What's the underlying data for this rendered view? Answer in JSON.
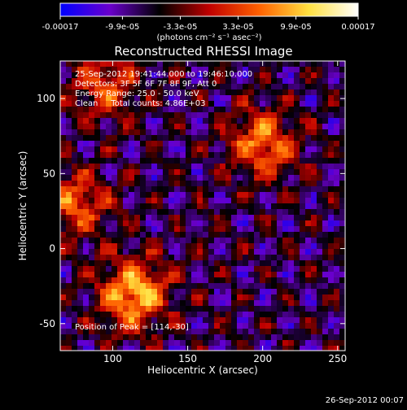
{
  "chart_data": {
    "type": "heatmap",
    "title": "Reconstructed RHESSI Image",
    "xlabel": "Heliocentric X (arcsec)",
    "ylabel": "Heliocentric Y (arcsec)",
    "xlim": [
      65,
      255
    ],
    "ylim": [
      -68,
      125
    ],
    "x_ticks": [
      100,
      150,
      200,
      250
    ],
    "y_ticks": [
      -50,
      0,
      50,
      100
    ],
    "colorbar": {
      "min": -0.00017,
      "max": 0.00017,
      "ticks": [
        -0.00017,
        -9.9e-05,
        -3.3e-05,
        3.3e-05,
        9.9e-05,
        0.00017
      ],
      "tick_labels": [
        "-0.00017",
        "-9.9e-05",
        "-3.3e-05",
        "3.3e-05",
        "9.9e-05",
        "0.00017"
      ],
      "unit_label": "(photons cm⁻² s⁻¹ asec⁻²)",
      "colormap": [
        "#0000ff",
        "#6a00cc",
        "#000000",
        "#c00000",
        "#ff6000",
        "#ffe040",
        "#ffffff"
      ]
    },
    "sources": [
      {
        "x": 114,
        "y": -30,
        "peak": 0.00017
      },
      {
        "x": 200,
        "y": 70,
        "peak": 0.00013
      },
      {
        "x": 75,
        "y": 30,
        "peak": 0.00011
      },
      {
        "x": 95,
        "y": 110,
        "peak": 0.0001
      }
    ],
    "grid": false
  },
  "info": {
    "line1": "25-Sep-2012 19:41:44.000 to 19:46:10.000",
    "line2": "Detectors: 3F 5F 6F 7F 8F 9F, Att 0",
    "line3": "Energy Range: 25.0 - 50.0 keV",
    "line4": "Clean     Total counts: 4.86E+03",
    "peak": "Position of Peak = [114,-30]"
  },
  "footer": {
    "timestamp": "26-Sep-2012 00:07"
  }
}
